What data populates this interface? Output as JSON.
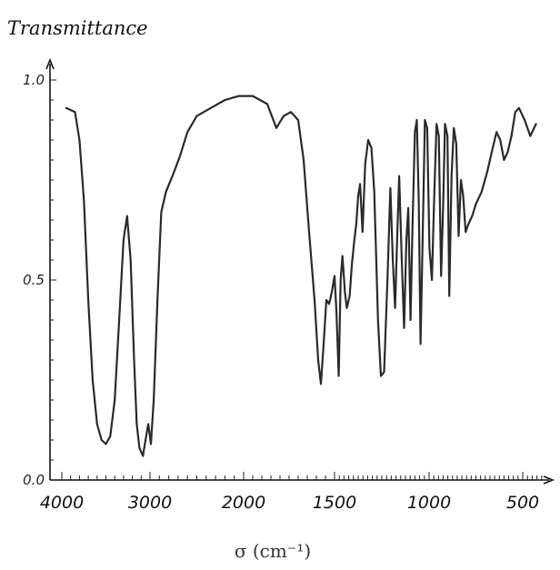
{
  "chart_data": {
    "type": "line",
    "ylabel": "Transmittance",
    "xlabel": "σ (cm⁻¹)",
    "xlim": [
      4000,
      380
    ],
    "x_reversed": true,
    "ylim": [
      0,
      1.0
    ],
    "x_ticks": [
      {
        "value": 4000,
        "label": "4000"
      },
      {
        "value": 3000,
        "label": "3000"
      },
      {
        "value": 2000,
        "label": "2000"
      },
      {
        "value": 1500,
        "label": "1500"
      },
      {
        "value": 1000,
        "label": "1000"
      },
      {
        "value": 500,
        "label": "500"
      }
    ],
    "y_ticks": [
      {
        "value": 0.0,
        "label": "0.0"
      },
      {
        "value": 0.5,
        "label": "0.5"
      },
      {
        "value": 1.0,
        "label": "1.0"
      }
    ],
    "axis_breaks": [
      {
        "from": 2000,
        "to": 1500
      }
    ],
    "grid": false,
    "color": "#2a2a2a",
    "series": [
      {
        "points": [
          [
            3950,
            0.93
          ],
          [
            3850,
            0.92
          ],
          [
            3800,
            0.85
          ],
          [
            3750,
            0.7
          ],
          [
            3700,
            0.45
          ],
          [
            3650,
            0.25
          ],
          [
            3600,
            0.14
          ],
          [
            3550,
            0.1
          ],
          [
            3500,
            0.09
          ],
          [
            3450,
            0.11
          ],
          [
            3400,
            0.2
          ],
          [
            3350,
            0.4
          ],
          [
            3300,
            0.6
          ],
          [
            3260,
            0.66
          ],
          [
            3220,
            0.55
          ],
          [
            3180,
            0.3
          ],
          [
            3150,
            0.14
          ],
          [
            3120,
            0.08
          ],
          [
            3080,
            0.06
          ],
          [
            3050,
            0.1
          ],
          [
            3020,
            0.14
          ],
          [
            2990,
            0.09
          ],
          [
            2960,
            0.2
          ],
          [
            2920,
            0.45
          ],
          [
            2880,
            0.67
          ],
          [
            2830,
            0.72
          ],
          [
            2760,
            0.76
          ],
          [
            2680,
            0.81
          ],
          [
            2600,
            0.87
          ],
          [
            2500,
            0.91
          ],
          [
            2350,
            0.93
          ],
          [
            2200,
            0.95
          ],
          [
            2050,
            0.96
          ],
          [
            1950,
            0.96
          ],
          [
            1870,
            0.94
          ],
          [
            1820,
            0.88
          ],
          [
            1780,
            0.91
          ],
          [
            1740,
            0.92
          ],
          [
            1700,
            0.9
          ],
          [
            1670,
            0.8
          ],
          [
            1640,
            0.62
          ],
          [
            1610,
            0.45
          ],
          [
            1590,
            0.3
          ],
          [
            1575,
            0.24
          ],
          [
            1560,
            0.34
          ],
          [
            1545,
            0.45
          ],
          [
            1530,
            0.44
          ],
          [
            1515,
            0.47
          ],
          [
            1500,
            0.51
          ],
          [
            1490,
            0.42
          ],
          [
            1478,
            0.26
          ],
          [
            1468,
            0.5
          ],
          [
            1458,
            0.56
          ],
          [
            1445,
            0.47
          ],
          [
            1435,
            0.43
          ],
          [
            1420,
            0.46
          ],
          [
            1408,
            0.54
          ],
          [
            1395,
            0.6
          ],
          [
            1385,
            0.64
          ],
          [
            1375,
            0.71
          ],
          [
            1365,
            0.74
          ],
          [
            1352,
            0.62
          ],
          [
            1338,
            0.79
          ],
          [
            1322,
            0.85
          ],
          [
            1305,
            0.83
          ],
          [
            1290,
            0.72
          ],
          [
            1270,
            0.4
          ],
          [
            1255,
            0.26
          ],
          [
            1238,
            0.27
          ],
          [
            1220,
            0.5
          ],
          [
            1205,
            0.73
          ],
          [
            1192,
            0.55
          ],
          [
            1180,
            0.43
          ],
          [
            1168,
            0.62
          ],
          [
            1158,
            0.76
          ],
          [
            1145,
            0.56
          ],
          [
            1132,
            0.38
          ],
          [
            1120,
            0.6
          ],
          [
            1110,
            0.68
          ],
          [
            1098,
            0.4
          ],
          [
            1088,
            0.63
          ],
          [
            1075,
            0.87
          ],
          [
            1065,
            0.9
          ],
          [
            1055,
            0.7
          ],
          [
            1045,
            0.34
          ],
          [
            1035,
            0.58
          ],
          [
            1022,
            0.9
          ],
          [
            1010,
            0.88
          ],
          [
            998,
            0.58
          ],
          [
            985,
            0.5
          ],
          [
            972,
            0.72
          ],
          [
            960,
            0.89
          ],
          [
            948,
            0.86
          ],
          [
            936,
            0.51
          ],
          [
            925,
            0.68
          ],
          [
            915,
            0.89
          ],
          [
            902,
            0.86
          ],
          [
            892,
            0.46
          ],
          [
            880,
            0.76
          ],
          [
            868,
            0.88
          ],
          [
            855,
            0.84
          ],
          [
            842,
            0.61
          ],
          [
            830,
            0.75
          ],
          [
            818,
            0.71
          ],
          [
            805,
            0.62
          ],
          [
            790,
            0.64
          ],
          [
            770,
            0.66
          ],
          [
            750,
            0.69
          ],
          [
            720,
            0.72
          ],
          [
            690,
            0.77
          ],
          [
            660,
            0.83
          ],
          [
            640,
            0.87
          ],
          [
            620,
            0.85
          ],
          [
            600,
            0.8
          ],
          [
            580,
            0.82
          ],
          [
            560,
            0.86
          ],
          [
            540,
            0.92
          ],
          [
            520,
            0.93
          ],
          [
            490,
            0.9
          ],
          [
            460,
            0.86
          ],
          [
            430,
            0.89
          ]
        ]
      }
    ]
  }
}
